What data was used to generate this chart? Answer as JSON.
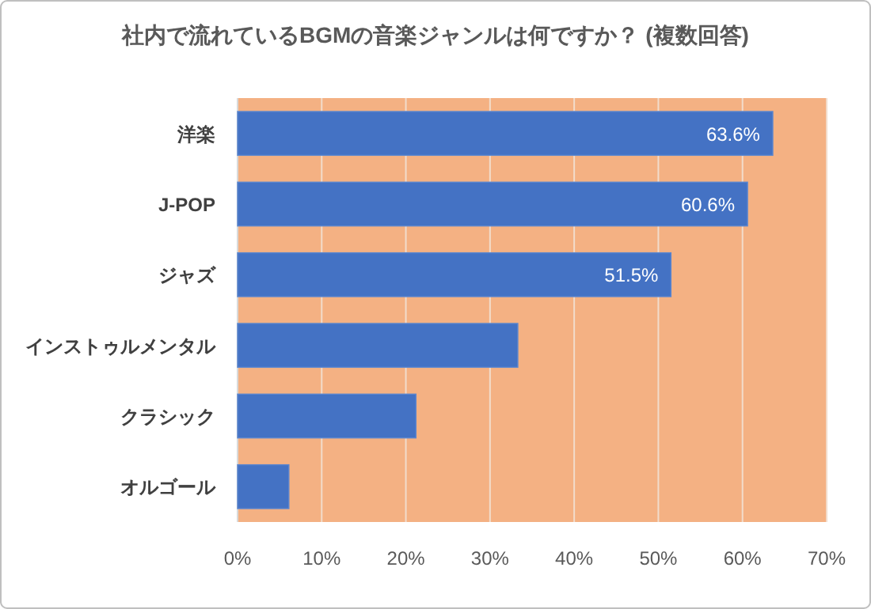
{
  "chart_data": {
    "type": "bar",
    "orientation": "horizontal",
    "title": "社内で流れているBGMの音楽ジャンルは何ですか？ (複数回答)",
    "categories": [
      "洋楽",
      "J-POP",
      "ジャズ",
      "インストゥルメンタル",
      "クラシック",
      "オルゴール"
    ],
    "values": [
      63.6,
      60.6,
      51.5,
      33.3,
      21.2,
      6.1
    ],
    "value_labels": [
      "63.6%",
      "60.6%",
      "51.5%",
      null,
      null,
      null
    ],
    "color": "#4472c4",
    "xlim": [
      0,
      70
    ],
    "xticks": [
      {
        "value": 0,
        "label": "0%"
      },
      {
        "value": 10,
        "label": "10%"
      },
      {
        "value": 20,
        "label": "20%"
      },
      {
        "value": 30,
        "label": "30%"
      },
      {
        "value": 40,
        "label": "40%"
      },
      {
        "value": 50,
        "label": "50%"
      },
      {
        "value": 60,
        "label": "60%"
      },
      {
        "value": 70,
        "label": "70%"
      }
    ],
    "grid": "x"
  }
}
